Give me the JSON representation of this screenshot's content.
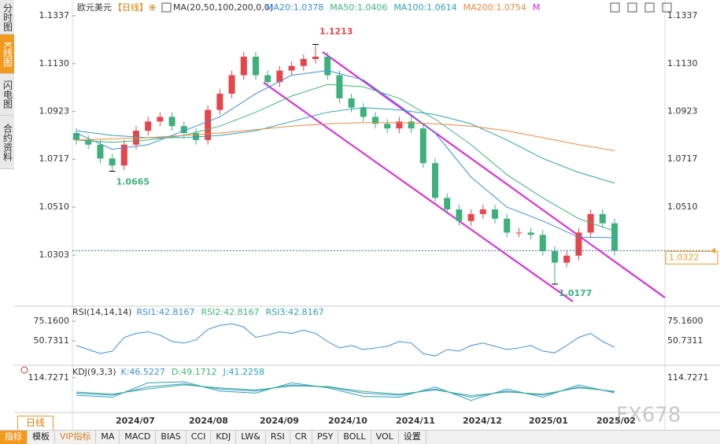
{
  "header": {
    "title": "欧元美元",
    "period": "【日线】",
    "ma_params": "MA(20,50,100,200,0,0)",
    "ma_more": "M"
  },
  "sidebar": [
    "分时图",
    "K线图",
    "闪电图",
    "合约资料"
  ],
  "toolbar": {
    "period": "日线",
    "tabs": [
      "指标",
      "模板",
      "VIP指标",
      "MA",
      "MACD",
      "BIAS",
      "CCI",
      "KDJ",
      "LW&",
      "RSI",
      "CR",
      "PSY",
      "BOLL",
      "VOL",
      "设置"
    ]
  },
  "watermark": "FX678",
  "chart_data": [
    {
      "type": "candlestick",
      "up_color": "#e5454b",
      "down_color": "#3db07c",
      "open": [
        1.083,
        1.08,
        1.078,
        1.072,
        1.069,
        1.078,
        1.084,
        1.088,
        1.09,
        1.086,
        1.083,
        1.08,
        1.093,
        1.1,
        1.108,
        1.116,
        1.108,
        1.105,
        1.11,
        1.112,
        1.115,
        1.116,
        1.108,
        1.098,
        1.094,
        1.09,
        1.087,
        1.085,
        1.088,
        1.085,
        1.07,
        1.055,
        1.05,
        1.045,
        1.048,
        1.05,
        1.046,
        1.04,
        1.04,
        1.039,
        1.032,
        1.027,
        1.03,
        1.04,
        1.048,
        1.044
      ],
      "high": [
        1.085,
        1.082,
        1.08,
        1.074,
        1.08,
        1.086,
        1.09,
        1.092,
        1.092,
        1.088,
        1.085,
        1.095,
        1.102,
        1.11,
        1.118,
        1.118,
        1.11,
        1.112,
        1.114,
        1.117,
        1.1213,
        1.118,
        1.11,
        1.1,
        1.096,
        1.092,
        1.089,
        1.09,
        1.09,
        1.087,
        1.072,
        1.057,
        1.052,
        1.05,
        1.052,
        1.052,
        1.048,
        1.042,
        1.042,
        1.041,
        1.034,
        1.032,
        1.042,
        1.05,
        1.05,
        1.046
      ],
      "low": [
        1.078,
        1.076,
        1.07,
        1.0665,
        1.067,
        1.076,
        1.082,
        1.086,
        1.084,
        1.081,
        1.078,
        1.078,
        1.091,
        1.098,
        1.106,
        1.106,
        1.103,
        1.103,
        1.108,
        1.11,
        1.113,
        1.106,
        1.096,
        1.092,
        1.088,
        1.085,
        1.083,
        1.083,
        1.083,
        1.068,
        1.053,
        1.048,
        1.043,
        1.043,
        1.046,
        1.044,
        1.038,
        1.038,
        1.037,
        1.03,
        1.0177,
        1.025,
        1.028,
        1.038,
        1.042,
        1.03
      ],
      "close": [
        1.08,
        1.078,
        1.072,
        1.069,
        1.078,
        1.084,
        1.088,
        1.09,
        1.086,
        1.083,
        1.08,
        1.093,
        1.1,
        1.108,
        1.116,
        1.108,
        1.105,
        1.11,
        1.112,
        1.115,
        1.116,
        1.108,
        1.098,
        1.094,
        1.09,
        1.087,
        1.085,
        1.088,
        1.085,
        1.07,
        1.055,
        1.05,
        1.045,
        1.048,
        1.05,
        1.046,
        1.04,
        1.04,
        1.039,
        1.032,
        1.027,
        1.03,
        1.04,
        1.048,
        1.044,
        1.0322
      ],
      "series": [
        {
          "name": "MA20:1.0378",
          "color": "#3a8ee6",
          "values": [
            1.083,
            1.076,
            1.078,
            1.084,
            1.09,
            1.1,
            1.108,
            1.11,
            1.106,
            1.095,
            1.083,
            1.064,
            1.051,
            1.045,
            1.038,
            1.0378
          ]
        },
        {
          "name": "MA50:1.0406",
          "color": "#3cb878",
          "values": [
            1.08,
            1.079,
            1.08,
            1.082,
            1.086,
            1.092,
            1.099,
            1.104,
            1.103,
            1.098,
            1.089,
            1.078,
            1.065,
            1.055,
            1.046,
            1.0406
          ]
        },
        {
          "name": "MA100:1.0614",
          "color": "#2aa3b8",
          "values": [
            1.084,
            1.082,
            1.081,
            1.081,
            1.082,
            1.084,
            1.088,
            1.092,
            1.094,
            1.093,
            1.091,
            1.087,
            1.08,
            1.072,
            1.066,
            1.0614
          ]
        },
        {
          "name": "MA200:1.0754",
          "color": "#f0883e",
          "values": [
            1.08,
            1.0805,
            1.081,
            1.082,
            1.083,
            1.0845,
            1.086,
            1.087,
            1.0875,
            1.0875,
            1.087,
            1.086,
            1.084,
            1.081,
            1.078,
            1.0754
          ]
        }
      ],
      "ylim": [
        1.0085,
        1.1388
      ],
      "yticks": [
        1.1337,
        {
          "value": 1.113,
          "label": "1.1130"
        },
        1.0923,
        1.0717,
        {
          "value": 1.051,
          "label": "1.0510"
        },
        1.0303
      ],
      "annotations": [
        1.1213,
        1.0665,
        1.0177
      ],
      "last_price": 1.0322,
      "x_labels": [
        "2024/07",
        "2024/08",
        "2024/09",
        "2024/10",
        "2024/11",
        "2024/12",
        "2025/01",
        "2025/02"
      ]
    },
    {
      "type": "line",
      "title": "RSI(14,14,14)",
      "legend": [
        "RSI2:42.8167",
        "RSI3:42.8167"
      ],
      "series": [
        {
          "name": "RSI1:42.8167",
          "color": "#3a8ee6",
          "values": [
            45,
            40,
            35,
            38,
            55,
            60,
            62,
            58,
            50,
            48,
            52,
            65,
            70,
            72,
            68,
            55,
            58,
            62,
            60,
            64,
            60,
            50,
            42,
            45,
            40,
            42,
            44,
            50,
            48,
            35,
            32,
            40,
            38,
            45,
            48,
            44,
            40,
            42,
            45,
            38,
            36,
            45,
            55,
            60,
            50,
            42.8167
          ]
        }
      ],
      "ylim": [
        22.4,
        90.8
      ],
      "yticks": [
        {
          "value": 75.16,
          "label": "75.1600"
        },
        50.7311
      ]
    },
    {
      "type": "line",
      "title": "KDJ(9,3,3)",
      "series": [
        {
          "name": "K:46.5227",
          "color": "#3a8ee6",
          "values": [
            40,
            30,
            70,
            85,
            60,
            50,
            80,
            70,
            40,
            30,
            60,
            20,
            50,
            30,
            70,
            46.5227
          ]
        },
        {
          "name": "D:49.1712",
          "color": "#3cb878",
          "values": [
            45,
            35,
            60,
            80,
            65,
            55,
            75,
            72,
            48,
            35,
            55,
            28,
            45,
            35,
            65,
            49.1712
          ]
        },
        {
          "name": "J:41.2258",
          "color": "#2aa3b8",
          "values": [
            30,
            20,
            90,
            95,
            50,
            40,
            90,
            66,
            24,
            20,
            70,
            4,
            60,
            20,
            80,
            41.2258
          ]
        }
      ],
      "ylim": [
        -20,
        160
      ],
      "yticks": [
        114.7271
      ]
    }
  ]
}
